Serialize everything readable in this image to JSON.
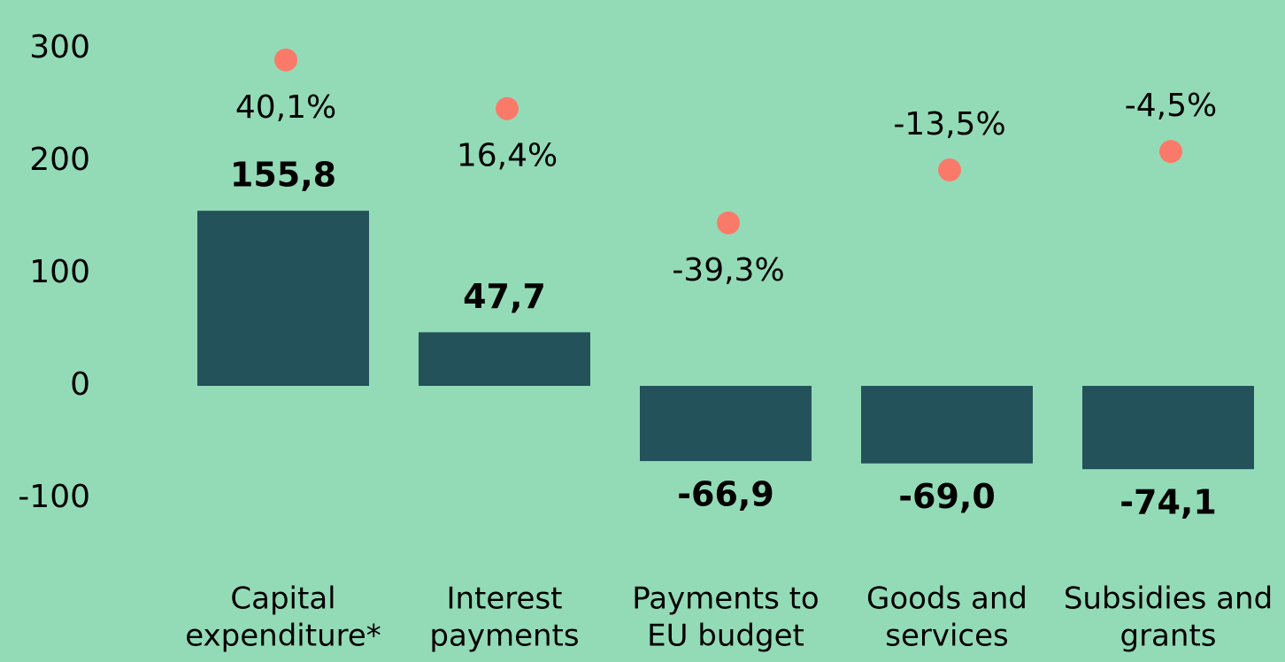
{
  "chart_data": {
    "type": "bar",
    "categories": [
      [
        "Capital",
        "expenditure*"
      ],
      [
        "Interest",
        "payments"
      ],
      [
        "Payments to",
        "EU budget"
      ],
      [
        "Goods and",
        "services"
      ],
      [
        "Subsidies and",
        "grants"
      ]
    ],
    "series": [
      {
        "type": "bar",
        "color": "#23525a",
        "values": [
          155.8,
          47.7,
          -66.9,
          -69.0,
          -74.1
        ],
        "value_labels": [
          "155,8",
          "47,7",
          "-66,9",
          "-69,0",
          "-74,1"
        ]
      },
      {
        "type": "scatter",
        "axis": "y2",
        "color": "#fa7a6a",
        "values": [
          40.1,
          16.4,
          -39.3,
          -13.5,
          -4.5
        ],
        "value_labels": [
          "40,1%",
          "16,4%",
          "-39,3%",
          "-13,5%",
          "-4,5%"
        ]
      }
    ],
    "ylim": [
      -100,
      300
    ],
    "yticks": [
      -100,
      0,
      100,
      200,
      300
    ],
    "y2lim": [
      -173.5,
      45.6
    ],
    "grid": false
  }
}
